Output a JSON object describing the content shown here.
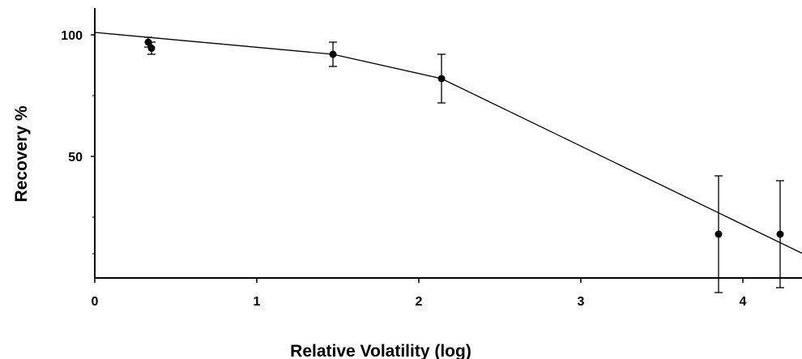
{
  "chart_data": {
    "type": "scatter",
    "title": "",
    "xlabel": "Relative Volatility (log)",
    "ylabel": "Recovery %",
    "xlim": [
      0,
      4.4
    ],
    "ylim": [
      0,
      110
    ],
    "x_ticks": [
      0,
      1,
      2,
      3,
      4
    ],
    "x_tick_labels": [
      "0",
      "1",
      "2",
      "3",
      "4"
    ],
    "y_ticks": [
      50,
      100
    ],
    "y_tick_labels": [
      "50",
      "100"
    ],
    "grid": false,
    "legend": "none",
    "colors": {
      "ink": "#000000",
      "background": "#ffffff"
    },
    "points": [
      {
        "x": 0.33,
        "y": 97,
        "err": 2
      },
      {
        "x": 0.35,
        "y": 94.5,
        "err": 2.5
      },
      {
        "x": 1.47,
        "y": 92,
        "err": 5
      },
      {
        "x": 2.14,
        "y": 82,
        "err": 10
      },
      {
        "x": 3.85,
        "y": 18,
        "err": 24
      },
      {
        "x": 4.23,
        "y": 18,
        "err": 22
      }
    ],
    "fit_line": [
      {
        "x": 0,
        "y": 101
      },
      {
        "x": 1.47,
        "y": 92
      },
      {
        "x": 2.14,
        "y": 82
      },
      {
        "x": 4.37,
        "y": 10
      }
    ]
  }
}
